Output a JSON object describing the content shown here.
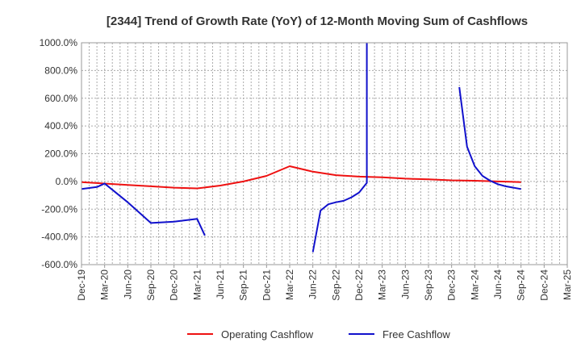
{
  "chart_data": {
    "type": "line",
    "title": "[2344]  Trend of Growth Rate (YoY) of 12-Month Moving Sum of Cashflows",
    "xlabel": "",
    "ylabel": "",
    "ylim": [
      -600,
      1000
    ],
    "y_ticks": [
      -600,
      -400,
      -200,
      0,
      200,
      400,
      600,
      800,
      1000
    ],
    "y_tick_labels": [
      "-600.0%",
      "-400.0%",
      "-200.0%",
      "0.0%",
      "200.0%",
      "400.0%",
      "600.0%",
      "800.0%",
      "1000.0%"
    ],
    "x_range": [
      "2019-12",
      "2025-03"
    ],
    "x_ticks": [
      "2019-12",
      "2020-03",
      "2020-06",
      "2020-09",
      "2020-12",
      "2021-03",
      "2021-06",
      "2021-09",
      "2021-12",
      "2022-03",
      "2022-06",
      "2022-09",
      "2022-12",
      "2023-03",
      "2023-06",
      "2023-09",
      "2023-12",
      "2024-03",
      "2024-06",
      "2024-09",
      "2024-12",
      "2025-03"
    ],
    "x_tick_labels": [
      "Dec-19",
      "Mar-20",
      "Jun-20",
      "Sep-20",
      "Dec-20",
      "Mar-21",
      "Jun-21",
      "Sep-21",
      "Dec-21",
      "Mar-22",
      "Jun-22",
      "Sep-22",
      "Dec-22",
      "Mar-23",
      "Jun-23",
      "Sep-23",
      "Dec-23",
      "Mar-24",
      "Jun-24",
      "Sep-24",
      "Dec-24",
      "Mar-25"
    ],
    "grid": true,
    "legend_position": "bottom",
    "series": [
      {
        "name": "Operating Cashflow",
        "color": "#ee1111",
        "points": [
          [
            "2019-12",
            -5
          ],
          [
            "2020-03",
            -15
          ],
          [
            "2020-06",
            -25
          ],
          [
            "2020-09",
            -35
          ],
          [
            "2020-12",
            -45
          ],
          [
            "2021-03",
            -50
          ],
          [
            "2021-06",
            -30
          ],
          [
            "2021-09",
            0
          ],
          [
            "2021-12",
            40
          ],
          [
            "2022-03",
            110
          ],
          [
            "2022-06",
            70
          ],
          [
            "2022-09",
            45
          ],
          [
            "2022-12",
            35
          ],
          [
            "2023-03",
            30
          ],
          [
            "2023-06",
            20
          ],
          [
            "2023-09",
            15
          ],
          [
            "2023-12",
            8
          ],
          [
            "2024-03",
            5
          ],
          [
            "2024-06",
            0
          ],
          [
            "2024-09",
            -5
          ]
        ]
      },
      {
        "name": "Free Cashflow",
        "color": "#1111cc",
        "segments": [
          [
            [
              "2019-12",
              -55
            ],
            [
              "2020-02",
              -40
            ],
            [
              "2020-03",
              -15
            ],
            [
              "2020-04",
              -60
            ],
            [
              "2020-06",
              -150
            ],
            [
              "2020-09",
              -300
            ],
            [
              "2020-12",
              -290
            ],
            [
              "2021-03",
              -270
            ],
            [
              "2021-04",
              -390
            ]
          ],
          [
            [
              "2022-06",
              -510
            ],
            [
              "2022-07",
              -210
            ],
            [
              "2022-08",
              -165
            ],
            [
              "2022-09",
              -150
            ],
            [
              "2022-10",
              -140
            ],
            [
              "2022-11",
              -115
            ],
            [
              "2022-12",
              -80
            ],
            [
              "2023-01",
              -10
            ],
            [
              "2023-01",
              1200
            ]
          ],
          [
            [
              "2024-01",
              680
            ],
            [
              "2024-02",
              250
            ],
            [
              "2024-03",
              110
            ],
            [
              "2024-04",
              40
            ],
            [
              "2024-05",
              5
            ],
            [
              "2024-06",
              -20
            ],
            [
              "2024-07",
              -35
            ],
            [
              "2024-09",
              -55
            ]
          ]
        ]
      }
    ]
  }
}
